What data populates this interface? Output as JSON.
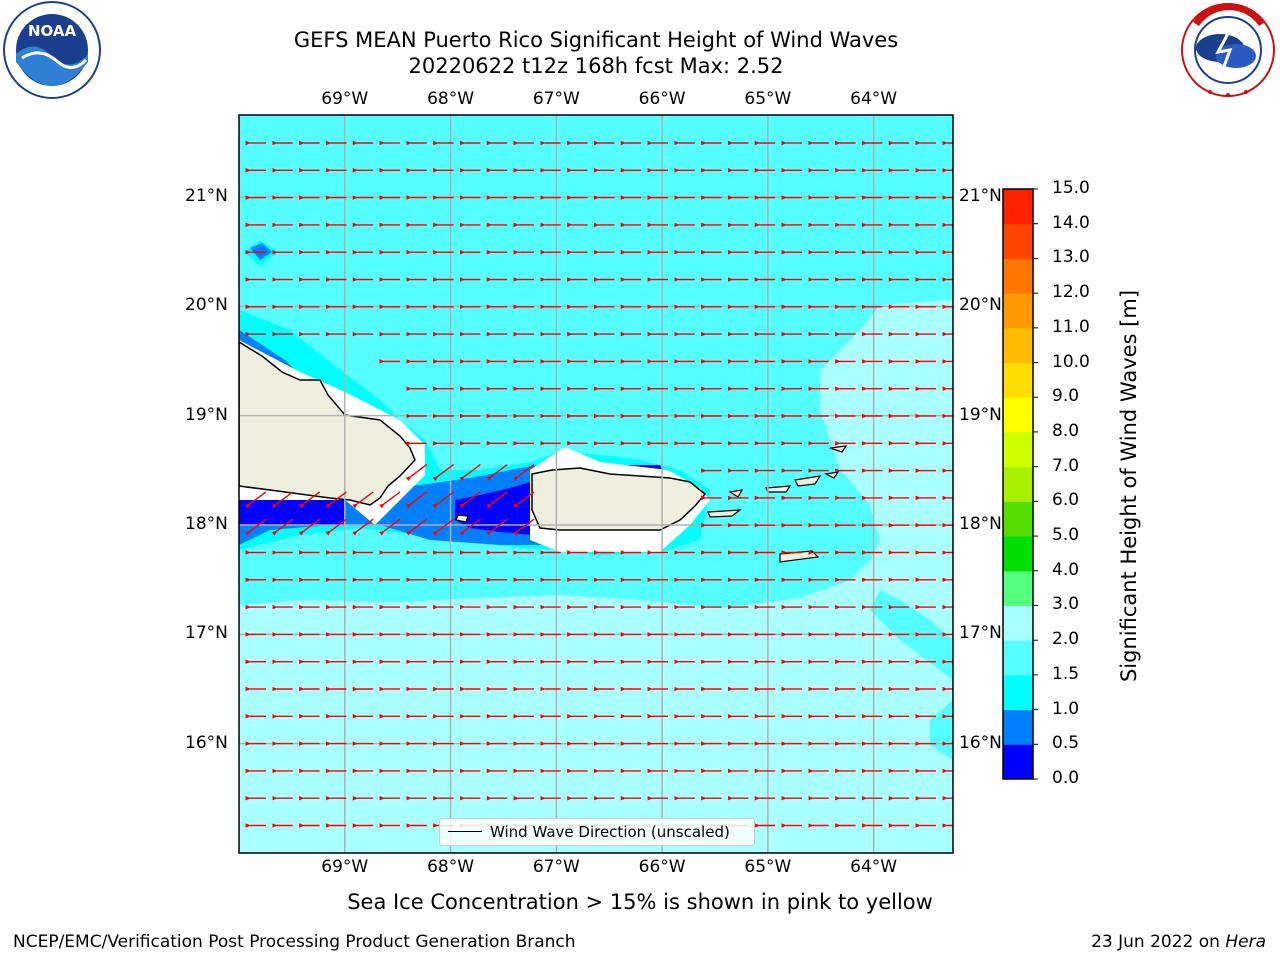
{
  "header": {
    "title": "GEFS MEAN Puerto Rico Significant Height of Wind Waves",
    "subtitle": "20220622 t12z 168h fcst   Max: 2.52"
  },
  "logos": {
    "left": {
      "name": "noaa-logo",
      "text": "NOAA",
      "ring_text": "NATIONAL OCEANIC AND ATMOSPHERIC ADMINISTRATION · U.S. DEPARTMENT OF COMMERCE"
    },
    "right": {
      "name": "nws-logo",
      "ring_text": "NATIONAL WEATHER SERVICE"
    }
  },
  "map": {
    "lon_labels": [
      "69°W",
      "68°W",
      "67°W",
      "66°W",
      "65°W",
      "64°W"
    ],
    "lon_values": [
      -69,
      -68,
      -67,
      -66,
      -65,
      -64
    ],
    "lat_labels": [
      "21°N",
      "20°N",
      "19°N",
      "18°N",
      "17°N",
      "16°N"
    ],
    "lat_values": [
      21,
      20,
      19,
      18,
      17,
      16
    ],
    "lon_range": [
      -70.0,
      -63.25
    ],
    "lat_range": [
      15.0,
      21.75
    ],
    "vector_direction": "east-to-west",
    "legend_label": "Wind Wave Direction (unscaled)",
    "colors": {
      "sea_base": "#aaffff",
      "land": "#efefe0",
      "vector": "#ff0000",
      "grid": "#b0b0b0"
    }
  },
  "colorbar": {
    "label": "Significant Height of Wind Waves [m]",
    "ticks": [
      "0.0",
      "0.5",
      "1.0",
      "1.5",
      "2.0",
      "3.0",
      "4.0",
      "5.0",
      "6.0",
      "7.0",
      "8.0",
      "9.0",
      "10.0",
      "11.0",
      "12.0",
      "13.0",
      "14.0",
      "15.0"
    ],
    "colors": [
      "#0000ff",
      "#0080ff",
      "#00ffff",
      "#55ffff",
      "#aaffff",
      "#55ff80",
      "#00dd00",
      "#55dd00",
      "#aaee00",
      "#ccff00",
      "#ffff00",
      "#ffdd00",
      "#ffbb00",
      "#ff9900",
      "#ff7700",
      "#ff4400",
      "#ff2200"
    ]
  },
  "footer": {
    "note": "Sea Ice Concentration > 15% is shown in pink to yellow",
    "credit": "NCEP/EMC/Verification Post Processing Product Generation Branch",
    "date": "23 Jun 2022 on ",
    "host": "Hera"
  }
}
